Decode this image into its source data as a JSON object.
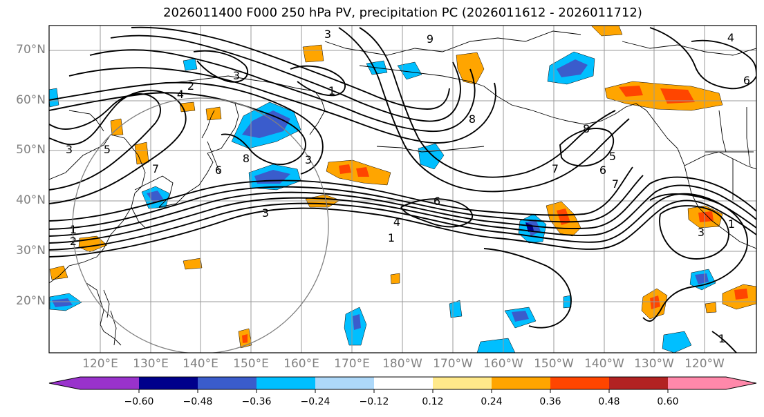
{
  "title": "2026011400 F000 250 hPa PV, precipitation PC (2026011612 - 2026011712)",
  "lat_labels": [
    "70°N",
    "60°N",
    "50°N",
    "40°N",
    "30°N",
    "20°N"
  ],
  "lon_labels": [
    "120°E",
    "130°E",
    "140°E",
    "150°E",
    "160°E",
    "170°E",
    "180°W",
    "170°W",
    "160°W",
    "150°W",
    "140°W",
    "130°W",
    "120°W"
  ],
  "colorbar": {
    "ticks": [
      "−0.60",
      "−0.48",
      "−0.36",
      "−0.24",
      "−0.12",
      "0.12",
      "0.24",
      "0.36",
      "0.48",
      "0.60"
    ],
    "colors": [
      "#9932cc",
      "#00008b",
      "#3a5ccc",
      "#00bfff",
      "#add8f9",
      "#ffffff",
      "#ffe98a",
      "#ffa500",
      "#ff4500",
      "#b22222",
      "#ff88aa"
    ]
  },
  "contour_labels": [
    "1",
    "2",
    "3",
    "4",
    "5",
    "6",
    "7",
    "8"
  ],
  "map_labels": {
    "c3_sea_of_okhotsk": "3",
    "c2_north": "2",
    "c4_north": "4",
    "c3_top": "3",
    "c1_kamchatka": "1",
    "c9_arctic": "9",
    "c3_west": "3",
    "c5_china": "5",
    "c7_korea": "7",
    "c8_japan": "8",
    "c6_japan": "6",
    "c3_pacific_west": "3",
    "c3_pacific_mid": "3",
    "c1_left": "1",
    "c2_left": "2",
    "c6_pacific": "6",
    "c4_pacific": "4",
    "c1_pacific": "1",
    "c7_alaska_gulf": "7",
    "c8_alaska": "8",
    "c8_gulf": "8",
    "c6_coast": "6",
    "c5_coast": "5",
    "c7_coast": "7",
    "c3_east": "3",
    "c1_east": "1",
    "c4_ne": "4",
    "c6_ne": "6",
    "c1_southeast": "1"
  }
}
